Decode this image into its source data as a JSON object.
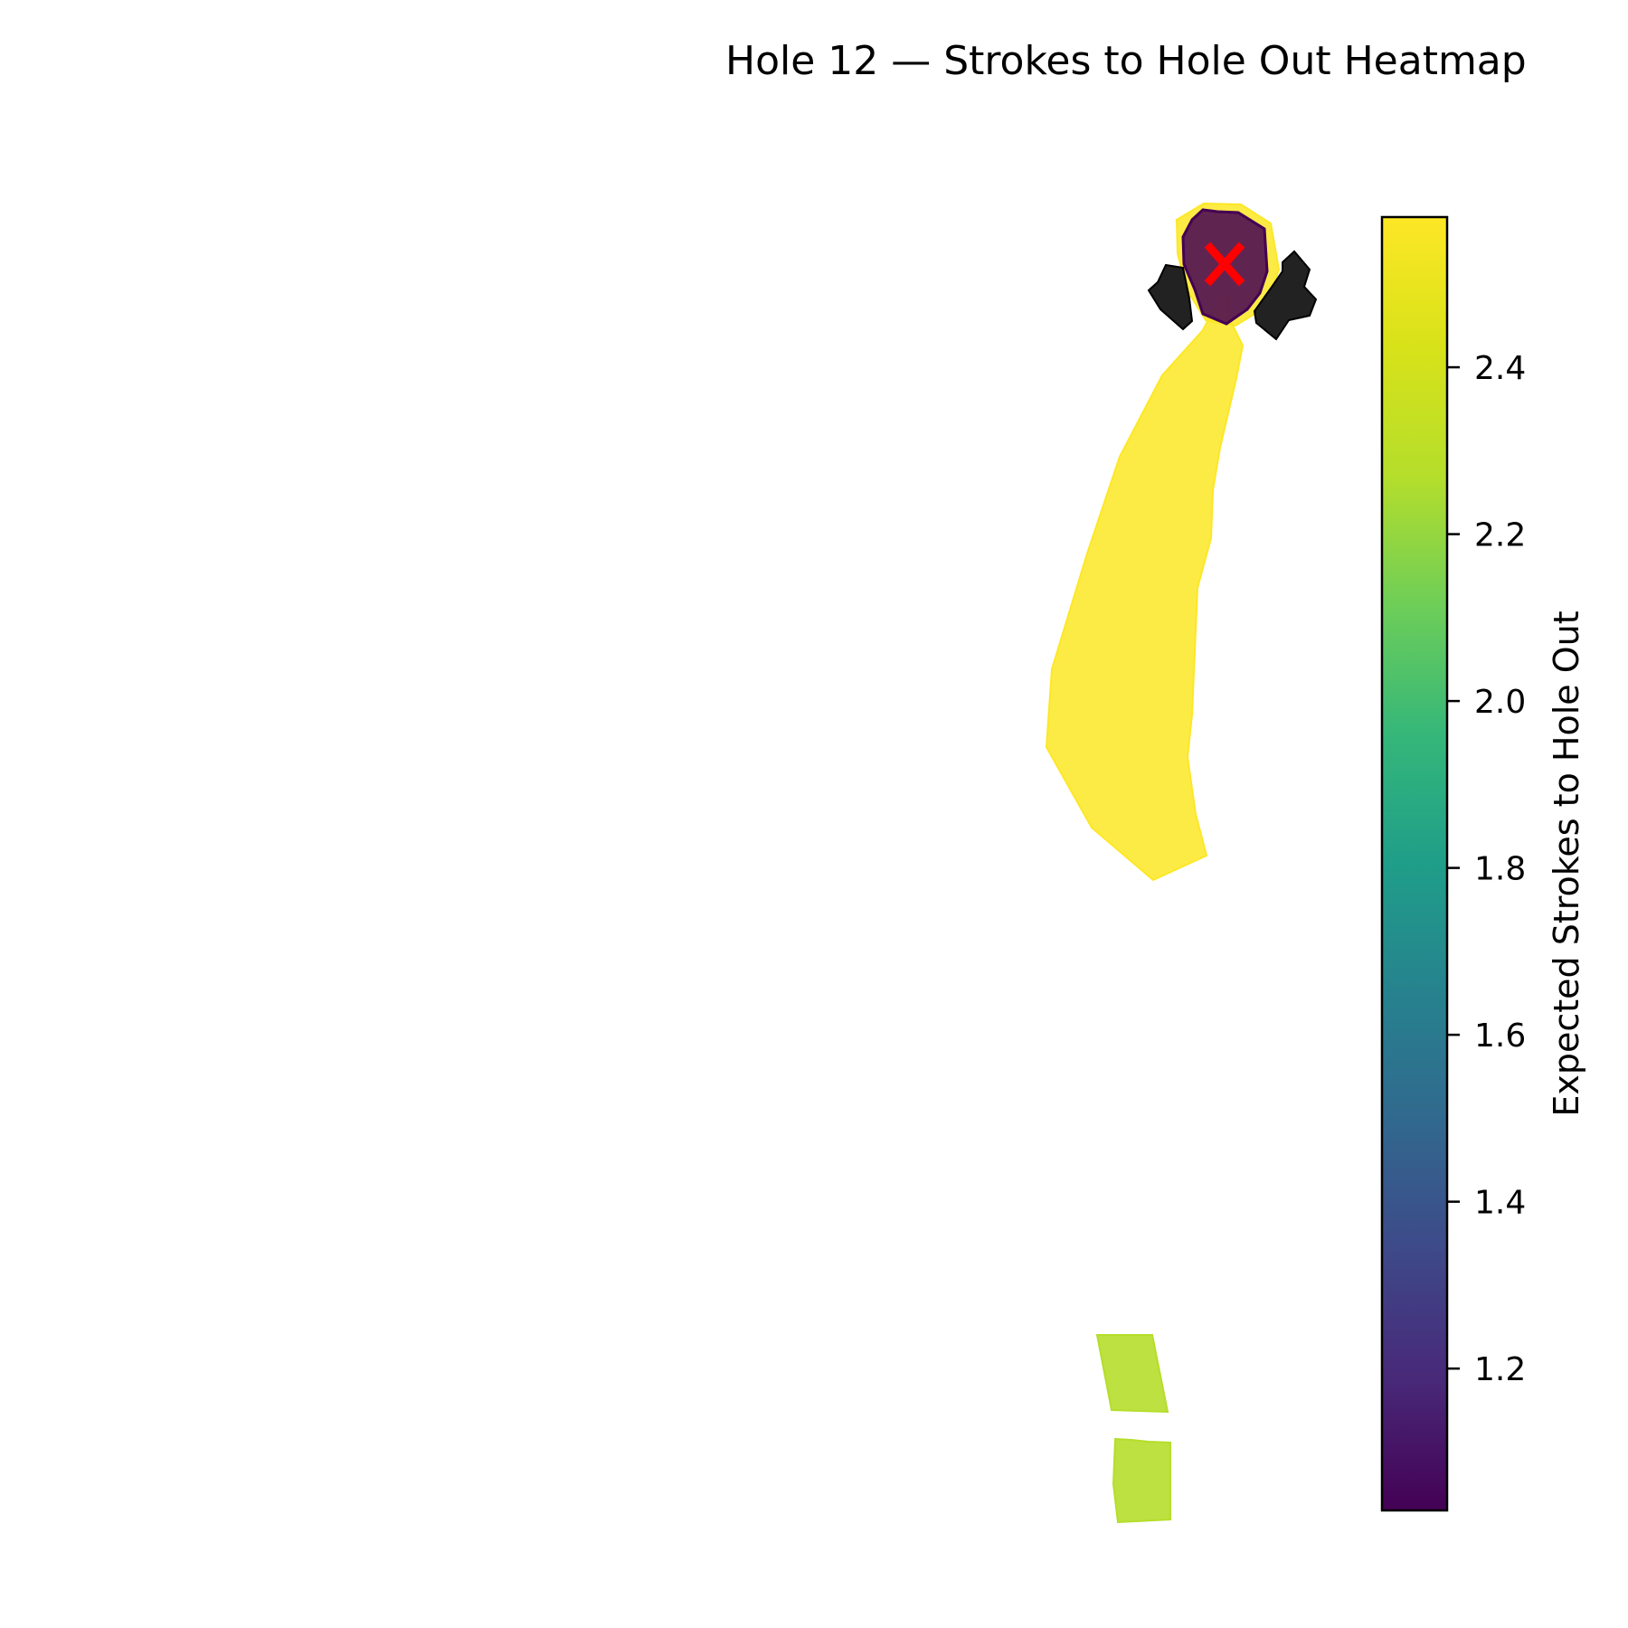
{
  "title": "Hole 12 — Strokes to Hole Out Heatmap",
  "colorbar": {
    "label": "Expected Strokes to Hole Out",
    "colormap": "viridis",
    "min": 1.03,
    "max": 2.58,
    "ticks": [
      "1.2",
      "1.4",
      "1.6",
      "1.8",
      "2.0",
      "2.2",
      "2.4"
    ]
  },
  "chart_data": {
    "type": "heatmap",
    "title": "Hole 12 — Strokes to Hole Out Heatmap",
    "colorbar_label": "Expected Strokes to Hole Out",
    "value_range": [
      1.03,
      2.58
    ],
    "regions": [
      {
        "feature": "fairway",
        "expected_strokes": 2.58,
        "color": "#fde725"
      },
      {
        "feature": "green surround",
        "expected_strokes": 2.58,
        "color": "#fde725"
      },
      {
        "feature": "green",
        "expected_strokes": 1.1,
        "color": "#440154"
      },
      {
        "feature": "bunker left",
        "expected_strokes": null,
        "color": "#222222"
      },
      {
        "feature": "bunker right",
        "expected_strokes": null,
        "color": "#222222"
      },
      {
        "feature": "tee box upper",
        "expected_strokes": 2.48,
        "color": "#b5de2b"
      },
      {
        "feature": "tee box lower",
        "expected_strokes": 2.48,
        "color": "#b5de2b"
      }
    ],
    "markers": [
      {
        "feature": "pin",
        "symbol": "x-icon",
        "color": "#ff0000"
      }
    ],
    "axes_visible": false
  }
}
